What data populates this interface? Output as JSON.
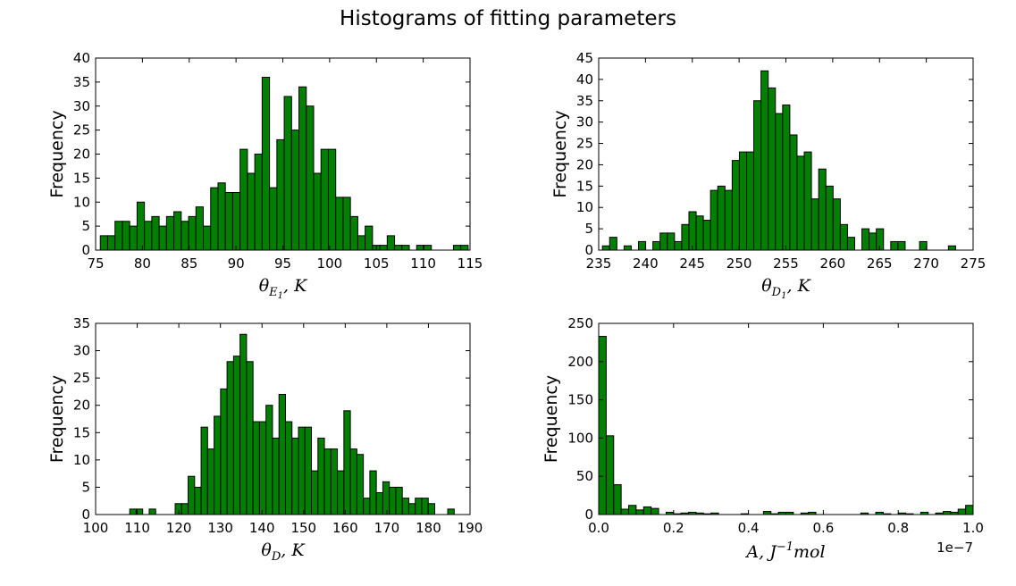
{
  "title": "Histograms of fitting parameters",
  "colors": {
    "bar_fill": "#008000",
    "bar_edge": "#000000"
  },
  "chart_data": [
    {
      "type": "bar",
      "ylabel": "Frequency",
      "xlabel": "θE1, K",
      "xlabel_parts": [
        {
          "t": "θ"
        },
        {
          "t": "E",
          "sub": true
        },
        {
          "t": "1",
          "subsub": true
        },
        {
          "t": ", K"
        }
      ],
      "xlim": [
        75,
        115
      ],
      "ylim": [
        0,
        40
      ],
      "xticks": [
        "75",
        "80",
        "85",
        "90",
        "95",
        "100",
        "105",
        "110",
        "115"
      ],
      "yticks": [
        "0",
        "5",
        "10",
        "15",
        "20",
        "25",
        "30",
        "35",
        "40"
      ],
      "bin_start": 75.5,
      "bin_width": 0.786,
      "values": [
        3,
        3,
        6,
        6,
        5,
        10,
        6,
        7,
        5,
        7,
        8,
        6,
        7,
        9,
        5,
        13,
        14,
        12,
        12,
        21,
        16,
        20,
        36,
        13,
        23,
        32,
        25,
        34,
        30,
        16,
        21,
        21,
        11,
        11,
        7,
        3,
        5,
        1,
        1,
        3,
        1,
        1,
        0,
        1,
        1,
        0,
        0,
        0,
        1,
        1
      ]
    },
    {
      "type": "bar",
      "ylabel": "Frequency",
      "xlabel": "θD1, K",
      "xlabel_parts": [
        {
          "t": "θ"
        },
        {
          "t": "D",
          "sub": true
        },
        {
          "t": "1",
          "subsub": true
        },
        {
          "t": ", K"
        }
      ],
      "xlim": [
        235,
        275
      ],
      "ylim": [
        0,
        45
      ],
      "xticks": [
        "235",
        "240",
        "245",
        "250",
        "255",
        "260",
        "265",
        "270",
        "275"
      ],
      "yticks": [
        "0",
        "5",
        "10",
        "15",
        "20",
        "25",
        "30",
        "35",
        "40",
        "45"
      ],
      "bin_start": 235.4,
      "bin_width": 0.77,
      "values": [
        1,
        3,
        0,
        1,
        0,
        2,
        0,
        2,
        4,
        4,
        2,
        6,
        9,
        8,
        7,
        14,
        15,
        14,
        21,
        23,
        23,
        35,
        42,
        38,
        32,
        34,
        27,
        22,
        23,
        12,
        19,
        15,
        12,
        6,
        3,
        0,
        5,
        4,
        5,
        0,
        2,
        2,
        0,
        0,
        2,
        0,
        0,
        0,
        1,
        0
      ]
    },
    {
      "type": "bar",
      "ylabel": "Frequency",
      "xlabel": "θD, K",
      "xlabel_parts": [
        {
          "t": "θ"
        },
        {
          "t": "D",
          "sub": true
        },
        {
          "t": ", K"
        }
      ],
      "xlim": [
        100,
        190
      ],
      "ylim": [
        0,
        35
      ],
      "xticks": [
        "100",
        "110",
        "120",
        "130",
        "140",
        "150",
        "160",
        "170",
        "180",
        "190"
      ],
      "yticks": [
        "0",
        "5",
        "10",
        "15",
        "20",
        "25",
        "30",
        "35"
      ],
      "bin_start": 108.2,
      "bin_width": 1.56,
      "values": [
        1,
        1,
        0,
        1,
        0,
        0,
        0,
        2,
        2,
        7,
        5,
        16,
        12,
        18,
        23,
        28,
        29,
        33,
        28,
        17,
        17,
        20,
        14,
        22,
        17,
        14,
        16,
        16,
        8,
        14,
        12,
        12,
        8,
        19,
        12,
        11,
        3,
        8,
        4,
        6,
        5,
        5,
        3,
        2,
        3,
        3,
        2,
        0,
        0,
        1
      ]
    },
    {
      "type": "bar",
      "ylabel": "Frequency",
      "xlabel": "A, J−1mol",
      "xlabel_parts": [
        {
          "t": "A, J"
        },
        {
          "t": "−1",
          "sup": true
        },
        {
          "t": "mol"
        }
      ],
      "offset_text": "1e−7",
      "xlim": [
        0,
        1.0
      ],
      "ylim": [
        0,
        250
      ],
      "xticks": [
        "0.0",
        "0.2",
        "0.4",
        "0.6",
        "0.8",
        "1.0"
      ],
      "yticks": [
        "0",
        "50",
        "100",
        "150",
        "200",
        "250"
      ],
      "bin_start": 0.0,
      "bin_width": 0.02,
      "values": [
        233,
        103,
        39,
        7,
        12,
        6,
        10,
        8,
        0,
        3,
        1,
        2,
        3,
        2,
        1,
        2,
        0,
        0,
        0,
        1,
        0,
        0,
        4,
        1,
        3,
        3,
        0,
        2,
        3,
        0,
        0,
        0,
        0,
        0,
        0,
        2,
        0,
        3,
        1,
        0,
        2,
        1,
        0,
        3,
        0,
        2,
        4,
        3,
        7,
        12
      ]
    }
  ]
}
